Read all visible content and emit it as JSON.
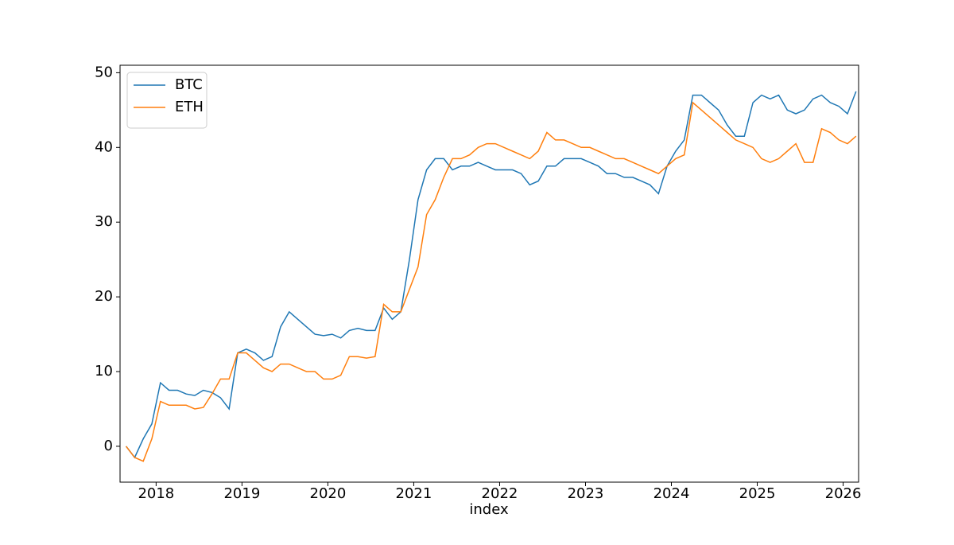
{
  "chart_data": {
    "type": "line",
    "x_label": "index",
    "x": [
      2017.65,
      2017.75,
      2017.85,
      2017.95,
      2018.05,
      2018.15,
      2018.25,
      2018.35,
      2018.45,
      2018.55,
      2018.65,
      2018.75,
      2018.85,
      2018.95,
      2019.05,
      2019.15,
      2019.25,
      2019.35,
      2019.45,
      2019.55,
      2019.65,
      2019.75,
      2019.85,
      2019.95,
      2020.05,
      2020.15,
      2020.25,
      2020.35,
      2020.45,
      2020.55,
      2020.65,
      2020.75,
      2020.85,
      2020.95,
      2021.05,
      2021.15,
      2021.25,
      2021.35,
      2021.45,
      2021.55,
      2021.65,
      2021.75,
      2021.85,
      2021.95,
      2022.05,
      2022.15,
      2022.25,
      2022.35,
      2022.45,
      2022.55,
      2022.65,
      2022.75,
      2022.85,
      2022.95,
      2023.05,
      2023.15,
      2023.25,
      2023.35,
      2023.45,
      2023.55,
      2023.65,
      2023.75,
      2023.85,
      2023.95,
      2024.05,
      2024.15,
      2024.25,
      2024.35,
      2024.45,
      2024.55,
      2024.65,
      2024.75,
      2024.85,
      2024.95,
      2025.05,
      2025.15,
      2025.25,
      2025.35,
      2025.45,
      2025.55,
      2025.65,
      2025.75,
      2025.85,
      2025.95,
      2026.05,
      2026.15
    ],
    "series": [
      {
        "name": "BTC",
        "color": "#1f77b4",
        "values": [
          0,
          -1.5,
          1,
          3,
          8.5,
          7.5,
          7.5,
          7,
          6.8,
          7.5,
          7.2,
          6.5,
          5,
          12.5,
          13,
          12.5,
          11.5,
          12,
          16,
          18,
          17,
          16,
          15,
          14.8,
          15,
          14.5,
          15.5,
          15.8,
          15.5,
          15.5,
          18.5,
          17,
          18,
          25,
          33,
          37,
          38.5,
          38.5,
          37,
          37.5,
          37.5,
          38,
          37.5,
          37,
          37,
          37,
          36.5,
          35,
          35.5,
          37.5,
          37.5,
          38.5,
          38.5,
          38.5,
          38,
          37.5,
          36.5,
          36.5,
          36,
          36,
          35.5,
          35,
          33.8,
          37.5,
          39.5,
          41,
          47,
          47,
          46,
          45,
          43,
          41.5,
          41.5,
          46,
          47,
          46.5,
          47,
          45,
          44.5,
          45,
          46.5,
          47,
          46,
          45.5,
          44.5,
          47.5
        ]
      },
      {
        "name": "ETH",
        "color": "#ff7f0e",
        "values": [
          0,
          -1.5,
          -2,
          1,
          6,
          5.5,
          5.5,
          5.5,
          5,
          5.2,
          7,
          9,
          9,
          12.5,
          12.5,
          11.5,
          10.5,
          10,
          11,
          11,
          10.5,
          10,
          10,
          9,
          9,
          9.5,
          12,
          12,
          11.8,
          12,
          19,
          18,
          18,
          21,
          24,
          31,
          33,
          36,
          38.5,
          38.5,
          39,
          40,
          40.5,
          40.5,
          40,
          39.5,
          39,
          38.5,
          39.5,
          42,
          41,
          41,
          40.5,
          40,
          40,
          39.5,
          39,
          38.5,
          38.5,
          38,
          37.5,
          37,
          36.5,
          37.5,
          38.5,
          39,
          46,
          45,
          44,
          43,
          42,
          41,
          40.5,
          40,
          38.5,
          38,
          38.5,
          39.5,
          40.5,
          38,
          38,
          42.5,
          42,
          41,
          40.5,
          41.5
        ]
      }
    ],
    "xlim": [
      2017.58,
      2026.18
    ],
    "xticks": [
      2018,
      2019,
      2020,
      2021,
      2022,
      2023,
      2024,
      2025,
      2026
    ],
    "ylim": [
      -4.8,
      51
    ],
    "yticks": [
      0,
      10,
      20,
      30,
      40,
      50
    ],
    "legend": "upper left",
    "grid": false
  }
}
